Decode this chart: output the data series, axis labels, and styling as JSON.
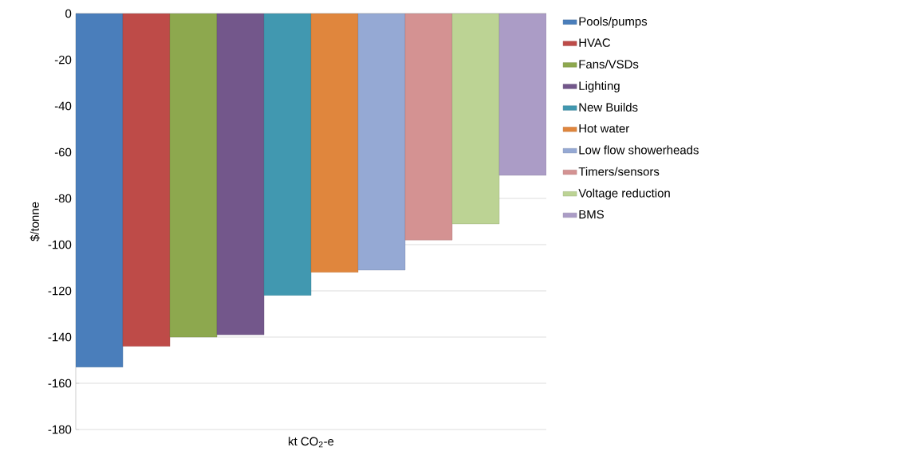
{
  "chart_data": {
    "type": "bar",
    "xlabel": "kt CO$_{2}$-e",
    "ylabel": "$/tonne",
    "categories": [
      null,
      null,
      null,
      null,
      null,
      null,
      null,
      null,
      null,
      null
    ],
    "ylim": [
      -180,
      0
    ],
    "yticks": [
      -180,
      -160,
      -140,
      -120,
      -100,
      -80,
      -60,
      -40,
      -20,
      0
    ],
    "grid": "y",
    "legend": "right",
    "series": [
      {
        "name": "Pools/pumps",
        "color": "#4a7ebb",
        "values": [
          -153,
          null,
          null,
          null,
          null,
          null,
          null,
          null,
          null,
          null
        ]
      },
      {
        "name": "HVAC",
        "color": "#be4b48",
        "values": [
          null,
          -144,
          null,
          null,
          null,
          null,
          null,
          null,
          null,
          null
        ]
      },
      {
        "name": "Fans/VSDs",
        "color": "#8da84e",
        "values": [
          null,
          null,
          -140,
          null,
          null,
          null,
          null,
          null,
          null,
          null
        ]
      },
      {
        "name": "Lighting",
        "color": "#73578b",
        "values": [
          null,
          null,
          null,
          -139,
          null,
          null,
          null,
          null,
          null,
          null
        ]
      },
      {
        "name": "New Builds",
        "color": "#4198b0",
        "values": [
          null,
          null,
          null,
          null,
          -122,
          null,
          null,
          null,
          null,
          null
        ]
      },
      {
        "name": "Hot water",
        "color": "#e0863d",
        "values": [
          null,
          null,
          null,
          null,
          null,
          -112,
          null,
          null,
          null,
          null
        ]
      },
      {
        "name": "Low flow showerheads",
        "color": "#95a9d4",
        "values": [
          null,
          null,
          null,
          null,
          null,
          null,
          -111,
          null,
          null,
          null
        ]
      },
      {
        "name": "Timers/sensors",
        "color": "#d49292",
        "values": [
          null,
          null,
          null,
          null,
          null,
          null,
          null,
          -98,
          null,
          null
        ]
      },
      {
        "name": "Voltage reduction",
        "color": "#bcd394",
        "values": [
          null,
          null,
          null,
          null,
          null,
          null,
          null,
          null,
          -91,
          null
        ]
      },
      {
        "name": "BMS",
        "color": "#ab9cc6",
        "values": [
          null,
          null,
          null,
          null,
          null,
          null,
          null,
          null,
          null,
          -70
        ]
      }
    ]
  }
}
